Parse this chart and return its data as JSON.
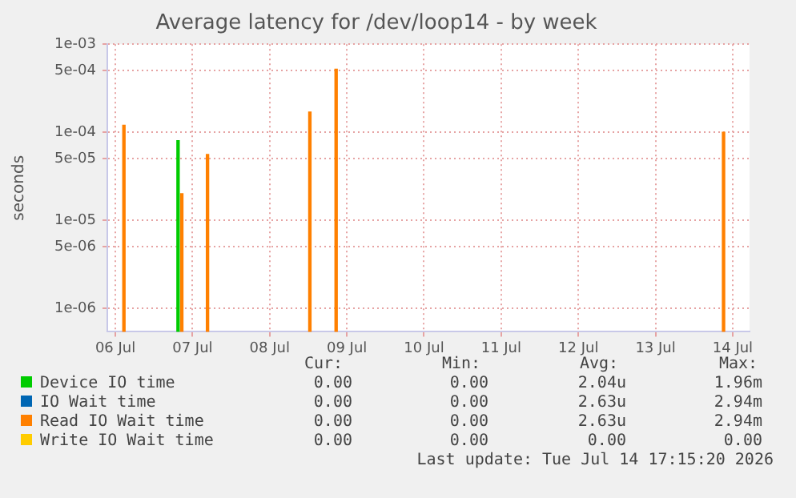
{
  "chart_data": {
    "type": "bar",
    "title": "Average latency for /dev/loop14 - by week",
    "ylabel": "seconds",
    "x": [
      "2026-07-06T14:40",
      "2026-07-07T07:30",
      "2026-07-07T08:40",
      "2026-07-07T16:40",
      "2026-07-09T00:30",
      "2026-07-09T08:40",
      "2026-07-14T09:10"
    ],
    "series": [
      {
        "name": "Device IO time",
        "color": "#00cc00",
        "values": [
          null,
          8e-05,
          null,
          null,
          null,
          null,
          null
        ]
      },
      {
        "name": "IO Wait time",
        "color": "#0066b3",
        "values": [
          null,
          null,
          null,
          null,
          null,
          null,
          null
        ]
      },
      {
        "name": "Read IO Wait time",
        "color": "#ff8000",
        "values": [
          0.00012,
          null,
          2e-05,
          5.6e-05,
          0.00017,
          0.00052,
          0.0001
        ]
      },
      {
        "name": "Write IO Wait time",
        "color": "#ffcc00",
        "values": [
          null,
          null,
          null,
          null,
          null,
          null,
          null
        ]
      }
    ],
    "log": "y",
    "ylim": [
      5.4e-07,
      0.001
    ],
    "yticks": [
      {
        "value": 0.001,
        "label": "1e-03"
      },
      {
        "value": 0.0005,
        "label": "5e-04"
      },
      {
        "value": 0.0001,
        "label": "1e-04"
      },
      {
        "value": 5e-05,
        "label": "5e-05"
      },
      {
        "value": 1e-05,
        "label": "1e-05"
      },
      {
        "value": 5e-06,
        "label": "5e-06"
      },
      {
        "value": 1e-06,
        "label": "1e-06"
      }
    ],
    "xlim": [
      "2026-07-06T09:30",
      "2026-07-14T17:15"
    ],
    "xticks": [
      {
        "value": "2026-07-06T12:00",
        "label": "06 Jul"
      },
      {
        "value": "2026-07-07T12:00",
        "label": "07 Jul"
      },
      {
        "value": "2026-07-08T12:00",
        "label": "08 Jul"
      },
      {
        "value": "2026-07-09T12:00",
        "label": "09 Jul"
      },
      {
        "value": "2026-07-10T12:00",
        "label": "10 Jul"
      },
      {
        "value": "2026-07-11T12:00",
        "label": "11 Jul"
      },
      {
        "value": "2026-07-12T12:00",
        "label": "12 Jul"
      },
      {
        "value": "2026-07-13T12:00",
        "label": "13 Jul"
      },
      {
        "value": "2026-07-14T12:00",
        "label": "14 Jul"
      }
    ],
    "grid": true,
    "legend": "bottom",
    "annotations": [
      "Cur:",
      "Min:",
      "Avg:",
      "Max:",
      "0.00",
      "0.00",
      "2.04u",
      "1.96m",
      "0.00",
      "0.00",
      "2.63u",
      "2.94m",
      "0.00",
      "0.00",
      "2.63u",
      "2.94m",
      "0.00",
      "0.00",
      "0.00",
      "0.00",
      "Last update: Tue Jul 14 17:15:20 2026"
    ]
  }
}
